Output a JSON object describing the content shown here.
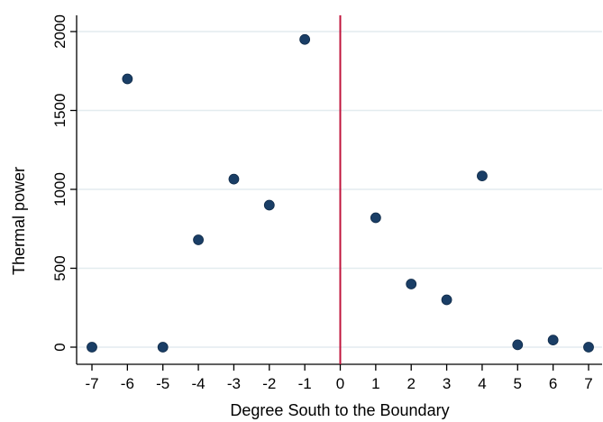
{
  "chart_data": {
    "type": "scatter",
    "title": "",
    "xlabel": "Degree South to the Boundary",
    "ylabel": "Thermal power",
    "xlim": [
      -7,
      7
    ],
    "ylim": [
      0,
      2000
    ],
    "x_ticks": [
      "-7",
      "-6",
      "-5",
      "-4",
      "-3",
      "-2",
      "-1",
      "0",
      "1",
      "2",
      "3",
      "4",
      "5",
      "6",
      "7"
    ],
    "y_ticks": [
      "0",
      "500",
      "1000",
      "1500",
      "2000"
    ],
    "grid": "horizontal",
    "vertical_reference_line": 0,
    "series": [
      {
        "points": [
          {
            "x": -7,
            "y": 0
          },
          {
            "x": -6,
            "y": 1700
          },
          {
            "x": -5,
            "y": 0
          },
          {
            "x": -4,
            "y": 680
          },
          {
            "x": -3,
            "y": 1065
          },
          {
            "x": -2,
            "y": 900
          },
          {
            "x": -1,
            "y": 1950
          },
          {
            "x": 1,
            "y": 820
          },
          {
            "x": 2,
            "y": 400
          },
          {
            "x": 3,
            "y": 300
          },
          {
            "x": 4,
            "y": 1085
          },
          {
            "x": 5,
            "y": 15
          },
          {
            "x": 6,
            "y": 45
          },
          {
            "x": 7,
            "y": 0
          }
        ]
      }
    ],
    "colors": {
      "marker": "#1a3e66",
      "reference_line": "#c0143c",
      "grid": "#e3ecef",
      "axis": "#000000"
    }
  }
}
